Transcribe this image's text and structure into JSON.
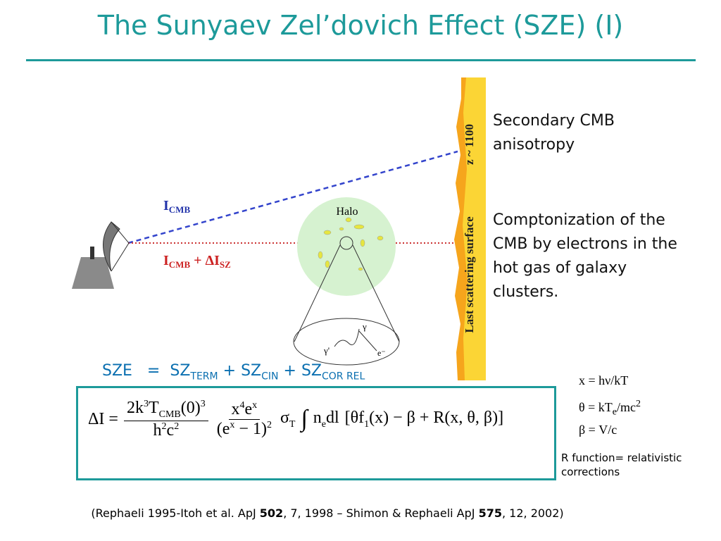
{
  "title": "The Sunyaev Zel’dovich Effect (SZE) (I)",
  "diagram": {
    "i_cmb": [
      "I",
      "CMB"
    ],
    "i_cmb_sz": [
      "I",
      "CMB",
      " + ΔI",
      "SZ"
    ],
    "halo": "Halo",
    "redshift": "z ~ 1100",
    "surface": "Last scattering surface",
    "photon": "γ",
    "photon_scattered": "γ'",
    "electron": "e⁻"
  },
  "bullets": [
    "Secondary CMB anisotropy",
    "Comptonization of the CMB by electrons in the hot gas of galaxy clusters."
  ],
  "sze": {
    "lhs": "SZE",
    "eq": "=",
    "op": "+",
    "terms": [
      [
        "SZ",
        "TERM"
      ],
      [
        "SZ",
        "CIN"
      ],
      [
        "SZ",
        "COR REL"
      ]
    ]
  },
  "equation": {
    "lhs": "ΔI =",
    "num1": [
      "2k",
      "3",
      "T",
      "CMB",
      "(0)",
      "3"
    ],
    "den1": [
      "h",
      "2",
      "c",
      "2"
    ],
    "num2": [
      "x",
      "4",
      "e",
      "x"
    ],
    "den2": [
      "(e",
      "x",
      " − 1)",
      "2"
    ],
    "sigma": [
      "σ",
      "T"
    ],
    "integral": "∫",
    "integrand": [
      "n",
      "e",
      "dl"
    ],
    "bracket": [
      "[θf",
      "1",
      "(x) − β + R(x, θ, β)]"
    ]
  },
  "definitions": [
    [
      "x = hν/kT"
    ],
    [
      "θ = kT",
      "e",
      "/mc",
      "2"
    ],
    [
      "β = V/c"
    ]
  ],
  "note": "R function= relativistic corrections",
  "reference": [
    "(Rephaeli 1995-Itoh et al. ApJ ",
    "502",
    ", 7, 1998 – Shimon & Rephaeli ApJ ",
    "575",
    ", 12, 2002)"
  ]
}
